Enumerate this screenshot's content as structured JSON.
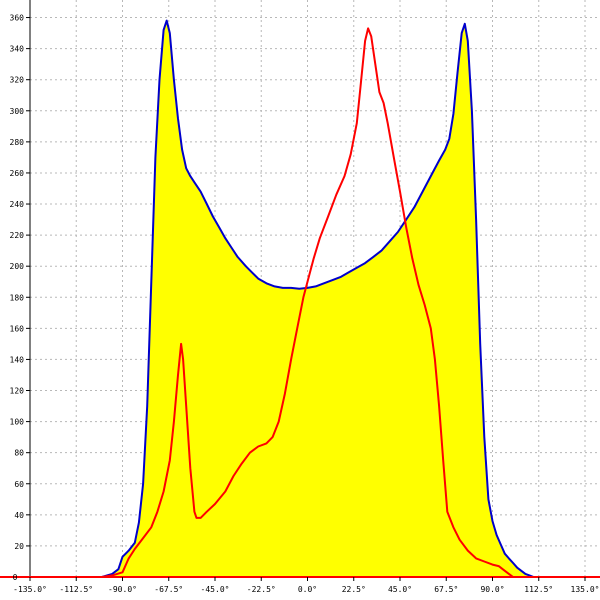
{
  "chart_data": {
    "type": "area",
    "title": "",
    "xlabel": "",
    "ylabel": "",
    "xlim": [
      -135,
      135
    ],
    "ylim": [
      0,
      370
    ],
    "x_ticks": [
      -135,
      -112.5,
      -90,
      -67.5,
      -45,
      -22.5,
      0,
      22.5,
      45,
      67.5,
      90,
      112.5,
      135
    ],
    "x_tick_labels": [
      "-135.0°",
      "-112.5°",
      "-90.0°",
      "-67.5°",
      "-45.0°",
      "-22.5°",
      "0.0°",
      "22.5°",
      "45.0°",
      "67.5°",
      "90.0°",
      "112.5°",
      "135.0°"
    ],
    "y_ticks": [
      20,
      40,
      60,
      80,
      100,
      120,
      140,
      160,
      180,
      200,
      220,
      240,
      260,
      280,
      300,
      320,
      340,
      360
    ],
    "y_tick_labels": [
      "20",
      "40",
      "60",
      "80",
      "100",
      "120",
      "140",
      "160",
      "180",
      "200",
      "220",
      "240",
      "260",
      "280",
      "300",
      "320",
      "340",
      "360"
    ],
    "grid": true,
    "legend": "none",
    "series": [
      {
        "color": "#0000cc",
        "fill": "#ffff00",
        "points": [
          [
            -100,
            0
          ],
          [
            -95,
            2
          ],
          [
            -92,
            5
          ],
          [
            -90,
            13
          ],
          [
            -87,
            17
          ],
          [
            -84,
            22
          ],
          [
            -82,
            35
          ],
          [
            -80,
            60
          ],
          [
            -78,
            110
          ],
          [
            -76,
            190
          ],
          [
            -74,
            270
          ],
          [
            -72,
            320
          ],
          [
            -70,
            352
          ],
          [
            -68.5,
            358
          ],
          [
            -67,
            350
          ],
          [
            -65,
            320
          ],
          [
            -63,
            295
          ],
          [
            -61,
            275
          ],
          [
            -59,
            263
          ],
          [
            -57,
            258
          ],
          [
            -55,
            254
          ],
          [
            -52,
            248
          ],
          [
            -49,
            240
          ],
          [
            -46,
            232
          ],
          [
            -43,
            225
          ],
          [
            -40,
            218
          ],
          [
            -37,
            212
          ],
          [
            -34,
            206
          ],
          [
            -30,
            200
          ],
          [
            -27,
            196
          ],
          [
            -24,
            192
          ],
          [
            -20,
            189
          ],
          [
            -16,
            187
          ],
          [
            -12,
            186
          ],
          [
            -8,
            186
          ],
          [
            -4,
            185.5
          ],
          [
            0,
            186
          ],
          [
            4,
            187
          ],
          [
            8,
            189
          ],
          [
            12,
            191
          ],
          [
            16,
            193
          ],
          [
            20,
            196
          ],
          [
            24,
            199
          ],
          [
            28,
            202
          ],
          [
            32,
            206
          ],
          [
            36,
            210
          ],
          [
            40,
            216
          ],
          [
            44,
            222
          ],
          [
            48,
            230
          ],
          [
            52,
            238
          ],
          [
            56,
            248
          ],
          [
            60,
            258
          ],
          [
            64,
            268
          ],
          [
            67,
            275
          ],
          [
            69,
            282
          ],
          [
            71,
            298
          ],
          [
            73,
            325
          ],
          [
            75,
            350
          ],
          [
            76.5,
            356
          ],
          [
            78,
            345
          ],
          [
            80,
            300
          ],
          [
            82,
            230
          ],
          [
            84,
            150
          ],
          [
            86,
            90
          ],
          [
            88,
            50
          ],
          [
            90,
            36
          ],
          [
            92,
            27
          ],
          [
            94,
            21
          ],
          [
            96,
            15
          ],
          [
            98,
            12
          ],
          [
            100,
            9
          ],
          [
            102,
            6
          ],
          [
            104,
            4
          ],
          [
            106,
            2
          ],
          [
            108,
            1
          ],
          [
            110,
            0
          ]
        ]
      },
      {
        "color": "#ff0000",
        "fill": "none",
        "points": [
          [
            -100,
            0
          ],
          [
            -95,
            1
          ],
          [
            -90,
            3
          ],
          [
            -87,
            12
          ],
          [
            -84,
            18
          ],
          [
            -80,
            25
          ],
          [
            -76,
            32
          ],
          [
            -73,
            42
          ],
          [
            -70,
            55
          ],
          [
            -67,
            75
          ],
          [
            -65,
            100
          ],
          [
            -63,
            130
          ],
          [
            -61.5,
            150
          ],
          [
            -60.5,
            140
          ],
          [
            -59,
            110
          ],
          [
            -57,
            70
          ],
          [
            -55,
            42
          ],
          [
            -54,
            38
          ],
          [
            -52,
            38
          ],
          [
            -49,
            42
          ],
          [
            -45,
            47
          ],
          [
            -40,
            55
          ],
          [
            -36,
            65
          ],
          [
            -32,
            73
          ],
          [
            -28,
            80
          ],
          [
            -24,
            84
          ],
          [
            -20,
            86
          ],
          [
            -17,
            90
          ],
          [
            -14,
            100
          ],
          [
            -11,
            118
          ],
          [
            -8,
            140
          ],
          [
            -5,
            160
          ],
          [
            -2,
            180
          ],
          [
            0,
            190
          ],
          [
            3,
            205
          ],
          [
            6,
            218
          ],
          [
            10,
            232
          ],
          [
            14,
            246
          ],
          [
            18,
            258
          ],
          [
            21,
            272
          ],
          [
            24,
            292
          ],
          [
            26,
            318
          ],
          [
            28,
            345
          ],
          [
            29.5,
            353
          ],
          [
            31,
            348
          ],
          [
            33,
            330
          ],
          [
            35,
            312
          ],
          [
            37,
            305
          ],
          [
            39,
            292
          ],
          [
            42,
            270
          ],
          [
            45,
            248
          ],
          [
            48,
            225
          ],
          [
            51,
            205
          ],
          [
            54,
            188
          ],
          [
            57,
            175
          ],
          [
            60,
            160
          ],
          [
            62,
            140
          ],
          [
            64,
            110
          ],
          [
            66,
            75
          ],
          [
            68,
            42
          ],
          [
            71,
            32
          ],
          [
            74,
            24
          ],
          [
            78,
            17
          ],
          [
            82,
            12
          ],
          [
            86,
            10
          ],
          [
            90,
            8
          ],
          [
            93,
            7
          ],
          [
            96,
            4
          ],
          [
            98,
            2
          ],
          [
            100,
            0
          ]
        ]
      }
    ]
  }
}
